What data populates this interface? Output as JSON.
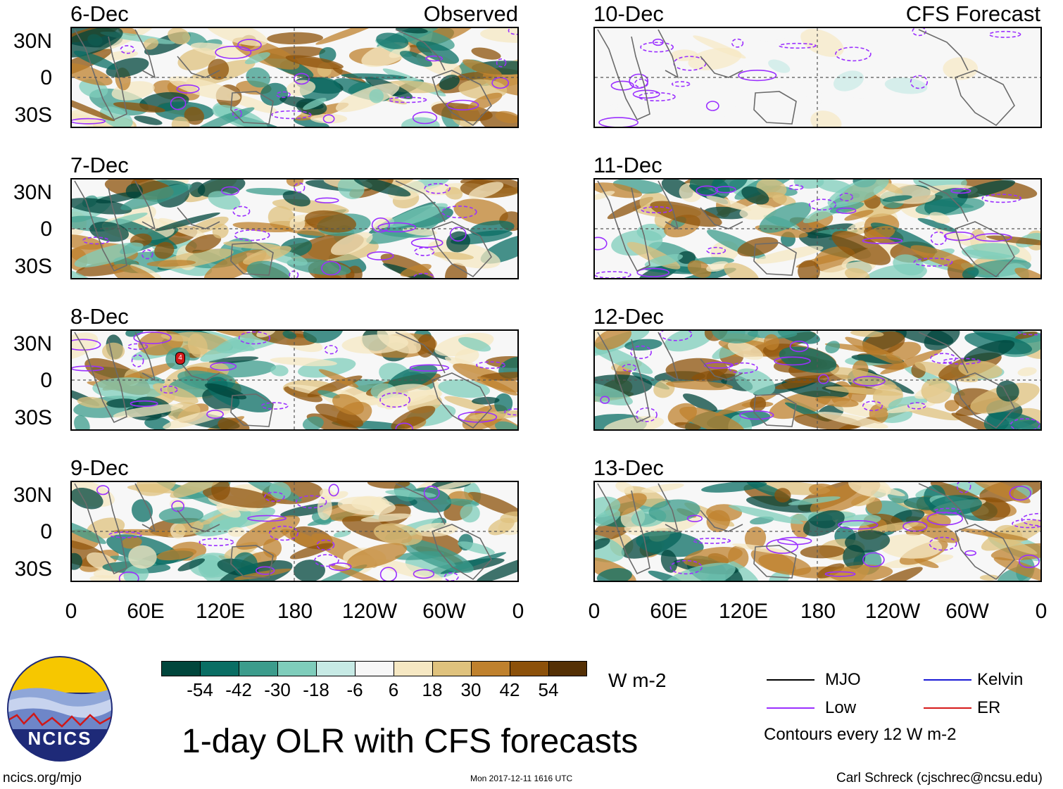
{
  "title": "1-day OLR with CFS forecasts",
  "panel_groups": {
    "observed_label": "Observed",
    "forecast_label": "CFS Forecast"
  },
  "panels": {
    "left": [
      {
        "date": "6-Dec",
        "kind": "observed"
      },
      {
        "date": "7-Dec",
        "kind": "observed"
      },
      {
        "date": "8-Dec",
        "kind": "observed"
      },
      {
        "date": "9-Dec",
        "kind": "observed"
      }
    ],
    "right": [
      {
        "date": "10-Dec",
        "kind": "forecast"
      },
      {
        "date": "11-Dec",
        "kind": "forecast"
      },
      {
        "date": "12-Dec",
        "kind": "forecast"
      },
      {
        "date": "13-Dec",
        "kind": "forecast"
      }
    ]
  },
  "axes": {
    "lat_labels": [
      "30N",
      "0",
      "30S"
    ],
    "lon_labels": [
      "0",
      "60E",
      "120E",
      "180",
      "120W",
      "60W",
      "0"
    ]
  },
  "colorbar": {
    "unit": "W m-2",
    "labels": [
      "-54",
      "-42",
      "-30",
      "-18",
      "-6",
      "6",
      "18",
      "30",
      "42",
      "54"
    ],
    "colors": [
      "#00463c",
      "#0a6e64",
      "#3c9c8c",
      "#7fcdbb",
      "#c7eae5",
      "#f7f7f7",
      "#f6e8c3",
      "#dfc27d",
      "#bf812d",
      "#8c510a",
      "#543005"
    ]
  },
  "legend": {
    "items": [
      {
        "label": "MJO",
        "color": "#000000"
      },
      {
        "label": "Kelvin",
        "color": "#1a1ad6"
      },
      {
        "label": "Low",
        "color": "#9b30ff"
      },
      {
        "label": "ER",
        "color": "#d61a1a"
      }
    ],
    "note": "Contours every 12 W m-2"
  },
  "footer": {
    "site": "ncics.org/mjo",
    "timestamp": "Mon 2017-12-11 1616 UTC",
    "credit": "Carl Schreck (cjschrec@ncsu.edu)"
  },
  "logo": {
    "text": "NCICS"
  },
  "storm_marker": {
    "label": "4"
  }
}
